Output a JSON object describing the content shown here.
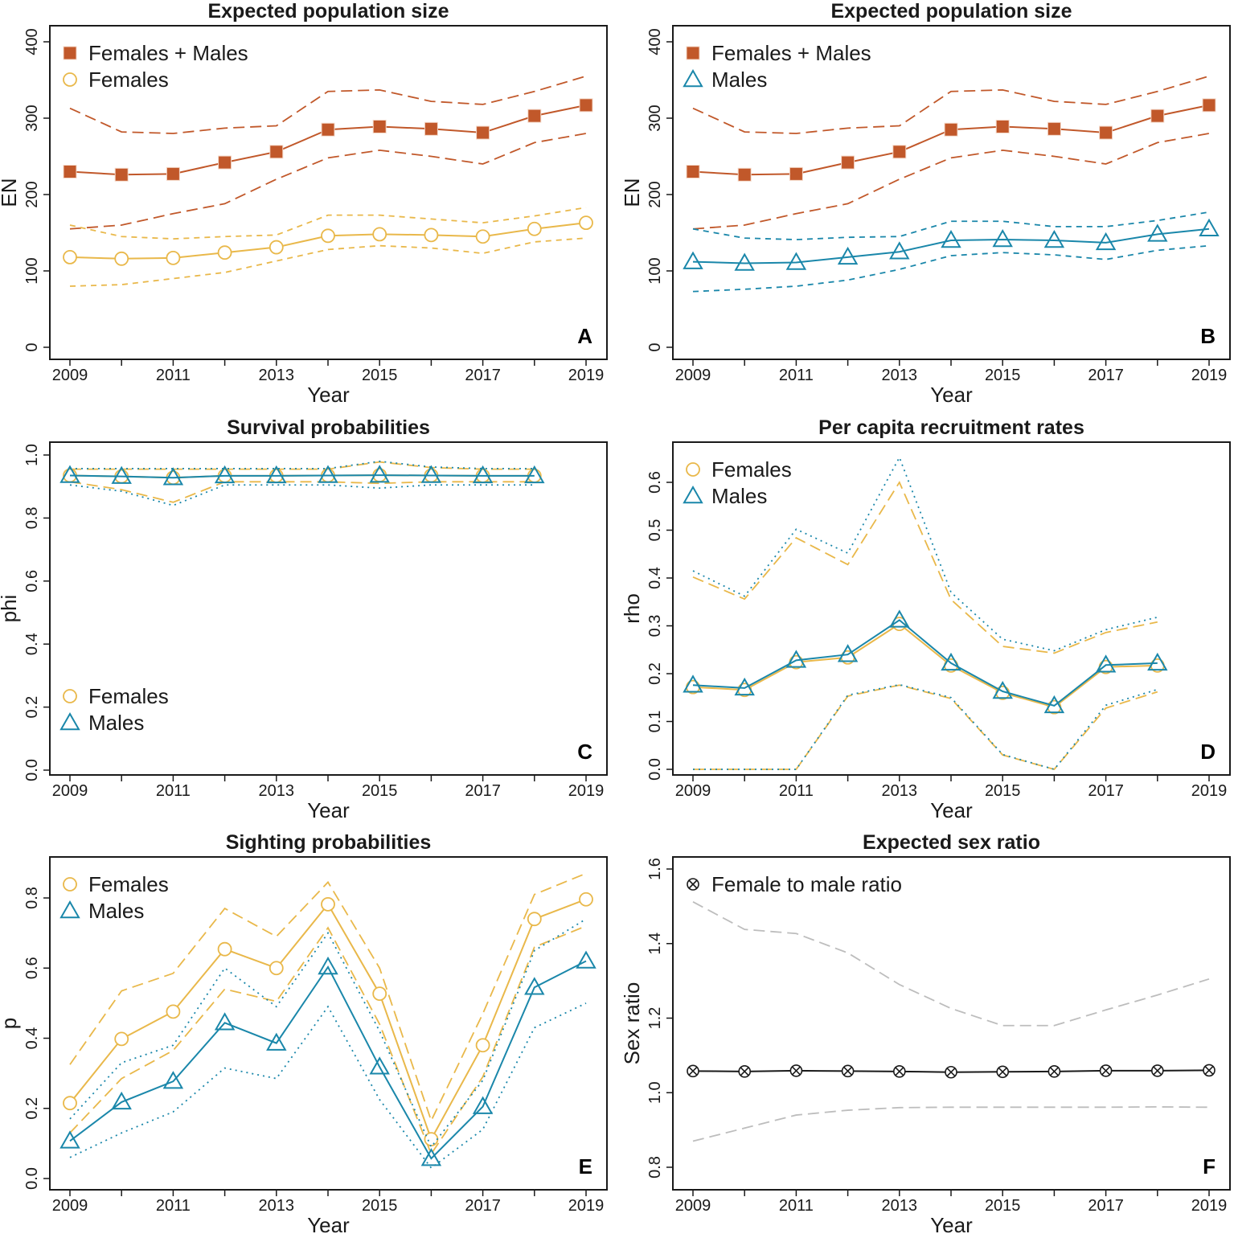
{
  "colors": {
    "total": "#c1582a",
    "females": "#e9b84a",
    "males": "#1a87aa",
    "ratio": "#1a1a1a",
    "ratio_ci": "#bdbdbd",
    "axis": "#1a1a1a"
  },
  "chart_data": [
    {
      "id": "A",
      "type": "line",
      "title": "Expected population size",
      "xlabel": "Year",
      "ylabel": "EN",
      "panel_letter": "A",
      "x": [
        2009,
        2010,
        2011,
        2012,
        2013,
        2014,
        2015,
        2016,
        2017,
        2018,
        2019
      ],
      "xlim": [
        2009,
        2019
      ],
      "xticks": [
        2009,
        2010,
        2011,
        2012,
        2013,
        2014,
        2015,
        2016,
        2017,
        2018,
        2019
      ],
      "xtick_labels": [
        "2009",
        "",
        "2011",
        "",
        "2013",
        "",
        "2015",
        "",
        "2017",
        "",
        "2019"
      ],
      "ylim": [
        0,
        400
      ],
      "yticks": [
        0,
        100,
        200,
        300,
        400
      ],
      "ytick_labels": [
        "0",
        "100",
        "200",
        "300",
        "400"
      ],
      "legend_position": "top-left",
      "legend": [
        {
          "label": "Females + Males",
          "marker": "filled-square",
          "color_key": "total"
        },
        {
          "label": "Females",
          "marker": "open-circle",
          "color_key": "females"
        }
      ],
      "series": [
        {
          "name": "Females + Males",
          "color_key": "total",
          "marker": "filled-square",
          "values": [
            230,
            226,
            227,
            242,
            256,
            285,
            289,
            286,
            281,
            303,
            317
          ],
          "lower": [
            155,
            160,
            175,
            188,
            220,
            248,
            258,
            250,
            240,
            268,
            280
          ],
          "upper": [
            313,
            282,
            280,
            287,
            290,
            335,
            337,
            322,
            318,
            335,
            355
          ],
          "ci_dash": "long"
        },
        {
          "name": "Females",
          "color_key": "females",
          "marker": "open-circle",
          "values": [
            118,
            116,
            117,
            124,
            131,
            146,
            148,
            147,
            145,
            155,
            163
          ],
          "lower": [
            80,
            82,
            90,
            98,
            113,
            128,
            133,
            130,
            123,
            138,
            143
          ],
          "upper": [
            160,
            145,
            142,
            145,
            147,
            173,
            173,
            168,
            163,
            172,
            183
          ],
          "ci_dash": "short"
        }
      ]
    },
    {
      "id": "B",
      "type": "line",
      "title": "Expected population size",
      "xlabel": "Year",
      "ylabel": "EN",
      "panel_letter": "B",
      "x": [
        2009,
        2010,
        2011,
        2012,
        2013,
        2014,
        2015,
        2016,
        2017,
        2018,
        2019
      ],
      "xlim": [
        2009,
        2019
      ],
      "xticks": [
        2009,
        2010,
        2011,
        2012,
        2013,
        2014,
        2015,
        2016,
        2017,
        2018,
        2019
      ],
      "xtick_labels": [
        "2009",
        "",
        "2011",
        "",
        "2013",
        "",
        "2015",
        "",
        "2017",
        "",
        "2019"
      ],
      "ylim": [
        0,
        400
      ],
      "yticks": [
        0,
        100,
        200,
        300,
        400
      ],
      "ytick_labels": [
        "0",
        "100",
        "200",
        "300",
        "400"
      ],
      "legend_position": "top-left",
      "legend": [
        {
          "label": "Females + Males",
          "marker": "filled-square",
          "color_key": "total"
        },
        {
          "label": "Males",
          "marker": "open-triangle",
          "color_key": "males"
        }
      ],
      "series": [
        {
          "name": "Females + Males",
          "color_key": "total",
          "marker": "filled-square",
          "values": [
            230,
            226,
            227,
            242,
            256,
            285,
            289,
            286,
            281,
            303,
            317
          ],
          "lower": [
            155,
            160,
            175,
            188,
            220,
            248,
            258,
            250,
            240,
            268,
            280
          ],
          "upper": [
            313,
            282,
            280,
            287,
            290,
            335,
            337,
            322,
            318,
            335,
            355
          ],
          "ci_dash": "long"
        },
        {
          "name": "Males",
          "color_key": "males",
          "marker": "open-triangle",
          "values": [
            112,
            110,
            111,
            118,
            125,
            140,
            141,
            140,
            137,
            148,
            155
          ],
          "lower": [
            73,
            76,
            80,
            88,
            102,
            120,
            124,
            121,
            115,
            127,
            133
          ],
          "upper": [
            155,
            143,
            141,
            144,
            145,
            165,
            165,
            158,
            158,
            166,
            177
          ],
          "ci_dash": "short"
        }
      ]
    },
    {
      "id": "C",
      "type": "line",
      "title": "Survival probabilities",
      "xlabel": "Year",
      "ylabel": "phi",
      "panel_letter": "C",
      "x": [
        2009,
        2010,
        2011,
        2012,
        2013,
        2014,
        2015,
        2016,
        2017,
        2018
      ],
      "xlim": [
        2009,
        2019
      ],
      "xticks": [
        2009,
        2010,
        2011,
        2012,
        2013,
        2014,
        2015,
        2016,
        2017,
        2018,
        2019
      ],
      "xtick_labels": [
        "2009",
        "",
        "2011",
        "",
        "2013",
        "",
        "2015",
        "",
        "2017",
        "",
        "2019"
      ],
      "ylim": [
        0,
        1
      ],
      "yticks": [
        0,
        0.2,
        0.4,
        0.6,
        0.8,
        1.0
      ],
      "ytick_labels": [
        "0.0",
        "0.2",
        "0.4",
        "0.6",
        "0.8",
        "1.0"
      ],
      "legend_position": "bottom-left",
      "legend": [
        {
          "label": "Females",
          "marker": "open-circle",
          "color_key": "females"
        },
        {
          "label": "Males",
          "marker": "open-triangle",
          "color_key": "males"
        }
      ],
      "series": [
        {
          "name": "Females",
          "color_key": "females",
          "marker": "open-circle",
          "values": [
            0.935,
            0.932,
            0.928,
            0.934,
            0.934,
            0.935,
            0.936,
            0.935,
            0.934,
            0.934
          ],
          "lower": [
            0.915,
            0.89,
            0.85,
            0.915,
            0.915,
            0.915,
            0.91,
            0.915,
            0.915,
            0.915
          ],
          "upper": [
            0.955,
            0.955,
            0.955,
            0.955,
            0.955,
            0.955,
            0.978,
            0.96,
            0.955,
            0.955
          ],
          "ci_dash": "long"
        },
        {
          "name": "Males",
          "color_key": "males",
          "marker": "open-triangle",
          "values": [
            0.935,
            0.932,
            0.928,
            0.934,
            0.934,
            0.935,
            0.936,
            0.935,
            0.934,
            0.934
          ],
          "lower": [
            0.905,
            0.885,
            0.84,
            0.905,
            0.905,
            0.905,
            0.895,
            0.905,
            0.905,
            0.905
          ],
          "upper": [
            0.957,
            0.957,
            0.957,
            0.957,
            0.957,
            0.957,
            0.98,
            0.962,
            0.957,
            0.957
          ],
          "ci_dash": "dotted"
        }
      ]
    },
    {
      "id": "D",
      "type": "line",
      "title": "Per capita recruitment rates",
      "xlabel": "Year",
      "ylabel": "rho",
      "panel_letter": "D",
      "x": [
        2009,
        2010,
        2011,
        2012,
        2013,
        2014,
        2015,
        2016,
        2017,
        2018
      ],
      "xlim": [
        2009,
        2019
      ],
      "xticks": [
        2009,
        2010,
        2011,
        2012,
        2013,
        2014,
        2015,
        2016,
        2017,
        2018,
        2019
      ],
      "xtick_labels": [
        "2009",
        "",
        "2011",
        "",
        "2013",
        "",
        "2015",
        "",
        "2017",
        "",
        "2019"
      ],
      "ylim": [
        0,
        0.6
      ],
      "yticks": [
        0,
        0.1,
        0.2,
        0.3,
        0.4,
        0.5,
        0.6
      ],
      "ytick_labels": [
        "0.0",
        "0.1",
        "0.2",
        "0.3",
        "0.4",
        "0.5",
        "0.6"
      ],
      "legend_position": "top-left",
      "legend": [
        {
          "label": "Females",
          "marker": "open-circle",
          "color_key": "females"
        },
        {
          "label": "Males",
          "marker": "open-triangle",
          "color_key": "males"
        }
      ],
      "series": [
        {
          "name": "Females",
          "color_key": "females",
          "marker": "open-circle",
          "values": [
            0.172,
            0.166,
            0.224,
            0.234,
            0.304,
            0.217,
            0.16,
            0.13,
            0.214,
            0.217
          ],
          "lower": [
            0.0,
            0.0,
            0.0,
            0.153,
            0.176,
            0.148,
            0.03,
            0.0,
            0.128,
            0.162
          ],
          "upper": [
            0.402,
            0.356,
            0.484,
            0.428,
            0.6,
            0.355,
            0.257,
            0.243,
            0.286,
            0.308
          ],
          "ci_dash": "long"
        },
        {
          "name": "Males",
          "color_key": "males",
          "marker": "open-triangle",
          "values": [
            0.176,
            0.17,
            0.228,
            0.24,
            0.312,
            0.222,
            0.163,
            0.133,
            0.218,
            0.222
          ],
          "lower": [
            0.0,
            0.0,
            0.0,
            0.155,
            0.177,
            0.15,
            0.031,
            0.0,
            0.134,
            0.167
          ],
          "upper": [
            0.415,
            0.362,
            0.502,
            0.452,
            0.652,
            0.37,
            0.272,
            0.248,
            0.292,
            0.318
          ],
          "ci_dash": "dotted"
        }
      ]
    },
    {
      "id": "E",
      "type": "line",
      "title": "Sighting probabilities",
      "xlabel": "Year",
      "ylabel": "p",
      "panel_letter": "E",
      "x": [
        2009,
        2010,
        2011,
        2012,
        2013,
        2014,
        2015,
        2016,
        2017,
        2018,
        2019
      ],
      "xlim": [
        2009,
        2019
      ],
      "xticks": [
        2009,
        2010,
        2011,
        2012,
        2013,
        2014,
        2015,
        2016,
        2017,
        2018,
        2019
      ],
      "xtick_labels": [
        "2009",
        "",
        "2011",
        "",
        "2013",
        "",
        "2015",
        "",
        "2017",
        "",
        "2019"
      ],
      "ylim": [
        0,
        0.8
      ],
      "yticks": [
        0,
        0.2,
        0.4,
        0.6,
        0.8
      ],
      "ytick_labels": [
        "0.0",
        "0.2",
        "0.4",
        "0.6",
        "0.8"
      ],
      "legend_position": "top-left",
      "legend": [
        {
          "label": "Females",
          "marker": "open-circle",
          "color_key": "females"
        },
        {
          "label": "Males",
          "marker": "open-triangle",
          "color_key": "males"
        }
      ],
      "series": [
        {
          "name": "Females",
          "color_key": "females",
          "marker": "open-circle",
          "values": [
            0.215,
            0.398,
            0.476,
            0.654,
            0.6,
            0.782,
            0.527,
            0.112,
            0.38,
            0.74,
            0.796
          ],
          "lower": [
            0.13,
            0.285,
            0.365,
            0.54,
            0.505,
            0.715,
            0.44,
            0.07,
            0.29,
            0.66,
            0.72
          ],
          "upper": [
            0.325,
            0.535,
            0.585,
            0.77,
            0.69,
            0.845,
            0.6,
            0.165,
            0.47,
            0.81,
            0.87
          ],
          "ci_dash": "long"
        },
        {
          "name": "Males",
          "color_key": "males",
          "marker": "open-triangle",
          "values": [
            0.107,
            0.218,
            0.277,
            0.444,
            0.386,
            0.603,
            0.318,
            0.057,
            0.205,
            0.545,
            0.62
          ],
          "lower": [
            0.06,
            0.13,
            0.19,
            0.315,
            0.285,
            0.49,
            0.225,
            0.03,
            0.14,
            0.43,
            0.5
          ],
          "upper": [
            0.17,
            0.33,
            0.38,
            0.6,
            0.49,
            0.7,
            0.42,
            0.09,
            0.28,
            0.65,
            0.74
          ],
          "ci_dash": "dotted"
        }
      ]
    },
    {
      "id": "F",
      "type": "line",
      "title": "Expected sex ratio",
      "xlabel": "Year",
      "ylabel": "Sex ratio",
      "panel_letter": "F",
      "x": [
        2009,
        2010,
        2011,
        2012,
        2013,
        2014,
        2015,
        2016,
        2017,
        2018,
        2019
      ],
      "xlim": [
        2009,
        2019
      ],
      "xticks": [
        2009,
        2010,
        2011,
        2012,
        2013,
        2014,
        2015,
        2016,
        2017,
        2018,
        2019
      ],
      "xtick_labels": [
        "2009",
        "",
        "2011",
        "",
        "2013",
        "",
        "2015",
        "",
        "2017",
        "",
        "2019"
      ],
      "ylim": [
        0.8,
        1.6
      ],
      "yticks": [
        0.8,
        1.0,
        1.2,
        1.4,
        1.6
      ],
      "ytick_labels": [
        "0.8",
        "1.0",
        "1.2",
        "1.4",
        "1.6"
      ],
      "legend_position": "top-left",
      "legend": [
        {
          "label": "Female to male ratio",
          "marker": "circle-x",
          "color_key": "ratio"
        }
      ],
      "series": [
        {
          "name": "Female to male ratio",
          "color_key": "ratio",
          "marker": "circle-x",
          "values": [
            1.058,
            1.057,
            1.059,
            1.058,
            1.057,
            1.055,
            1.056,
            1.057,
            1.059,
            1.059,
            1.06
          ],
          "lower": [
            0.87,
            0.905,
            0.94,
            0.953,
            0.96,
            0.961,
            0.961,
            0.961,
            0.961,
            0.962,
            0.961
          ],
          "upper": [
            1.512,
            1.438,
            1.427,
            1.375,
            1.29,
            1.226,
            1.18,
            1.18,
            1.222,
            1.262,
            1.305
          ],
          "ci_dash": "long",
          "ci_color_key": "ratio_ci"
        }
      ]
    }
  ]
}
